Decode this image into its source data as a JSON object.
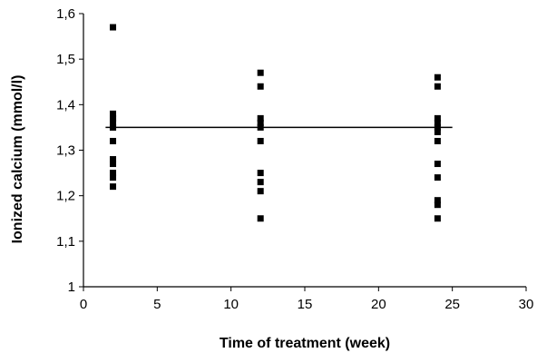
{
  "chart_data": {
    "type": "scatter",
    "title": "",
    "xlabel": "Time of treatment (week)",
    "ylabel": "Ionized calcium (mmol/l)",
    "xlim": [
      0,
      30
    ],
    "ylim": [
      1,
      1.6
    ],
    "x_ticks": [
      0,
      5,
      10,
      15,
      20,
      25,
      30
    ],
    "y_ticks": [
      1,
      1.1,
      1.2,
      1.3,
      1.4,
      1.5,
      1.6
    ],
    "x_tick_labels": [
      "0",
      "5",
      "10",
      "15",
      "20",
      "25",
      "30"
    ],
    "y_tick_labels": [
      "1",
      "1,1",
      "1,2",
      "1,3",
      "1,4",
      "1,5",
      "1,6"
    ],
    "grid": false,
    "legend": "none",
    "marker": "square",
    "marker_color": "#000000",
    "series": [
      {
        "x": [
          2,
          2,
          2,
          2,
          2,
          2,
          2,
          2,
          2,
          2,
          2,
          2,
          2
        ],
        "y": [
          1.57,
          1.38,
          1.37,
          1.36,
          1.35,
          1.35,
          1.32,
          1.28,
          1.27,
          1.25,
          1.24,
          1.22,
          1.37
        ]
      },
      {
        "x": [
          12,
          12,
          12,
          12,
          12,
          12,
          12,
          12,
          12,
          12
        ],
        "y": [
          1.47,
          1.44,
          1.37,
          1.36,
          1.32,
          1.25,
          1.23,
          1.21,
          1.15,
          1.35
        ]
      },
      {
        "x": [
          24,
          24,
          24,
          24,
          24,
          24,
          24,
          24,
          24,
          24,
          24,
          24
        ],
        "y": [
          1.46,
          1.44,
          1.37,
          1.36,
          1.34,
          1.32,
          1.27,
          1.24,
          1.19,
          1.18,
          1.15,
          1.35
        ]
      }
    ],
    "reference_line": {
      "y": 1.35,
      "x_start": 1.5,
      "x_end": 25
    }
  }
}
